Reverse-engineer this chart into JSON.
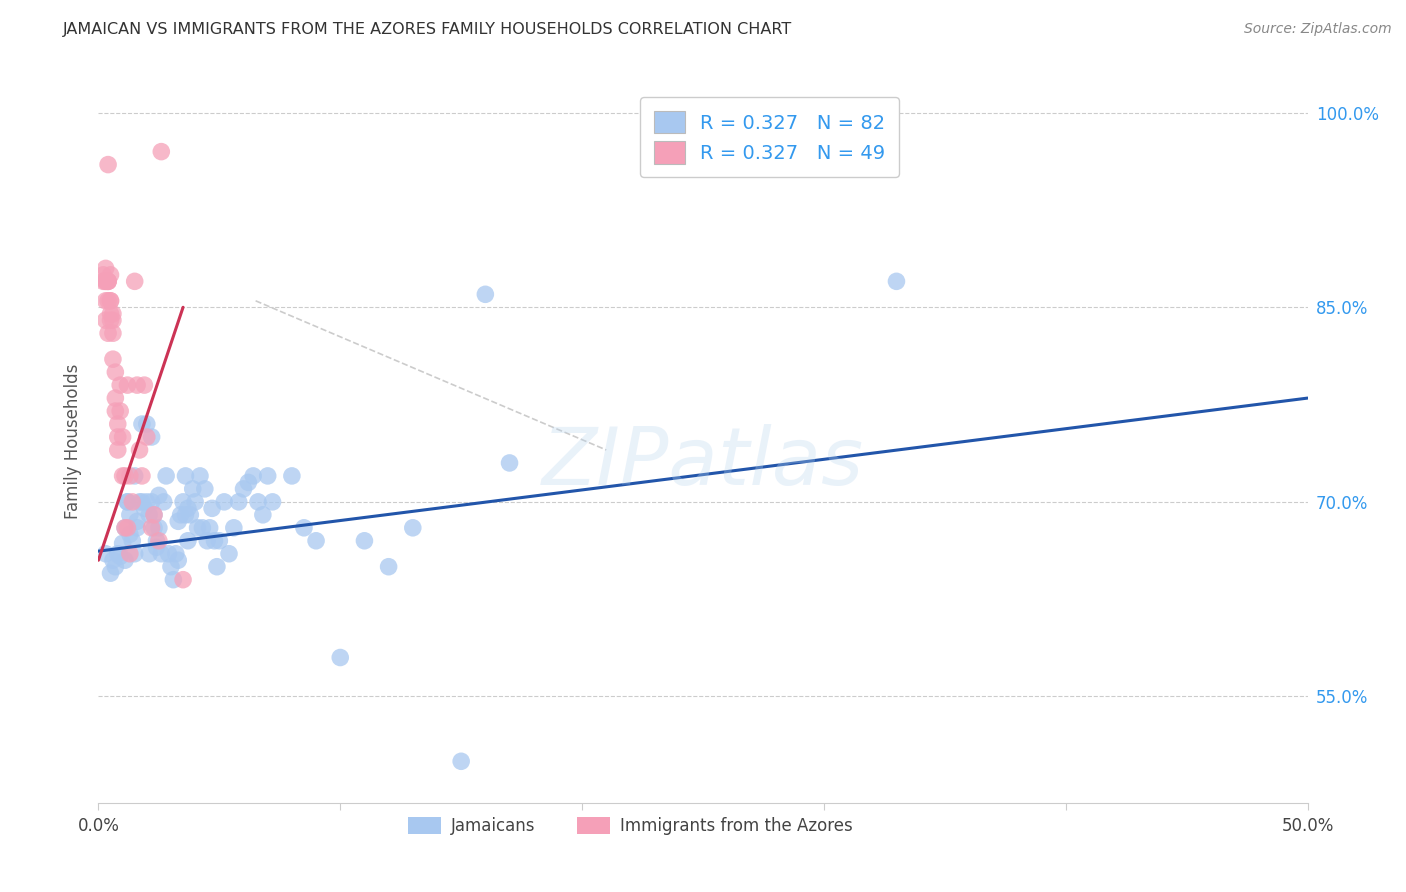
{
  "title": "JAMAICAN VS IMMIGRANTS FROM THE AZORES FAMILY HOUSEHOLDS CORRELATION CHART",
  "source": "Source: ZipAtlas.com",
  "ylabel": "Family Households",
  "watermark": "ZIPatlas",
  "legend_label_blue": "Jamaicans",
  "legend_label_pink": "Immigrants from the Azores",
  "xmin": 0.0,
  "xmax": 0.5,
  "ymin": 0.468,
  "ymax": 1.025,
  "yticks": [
    0.55,
    0.7,
    0.85,
    1.0
  ],
  "ytick_labels": [
    "55.0%",
    "70.0%",
    "85.0%",
    "100.0%"
  ],
  "xticks": [
    0.0,
    0.1,
    0.2,
    0.3,
    0.4,
    0.5
  ],
  "xtick_labels": [
    "0.0%",
    "",
    "",
    "",
    "",
    "50.0%"
  ],
  "blue_color": "#a8c8f0",
  "pink_color": "#f5a0b8",
  "blue_line_color": "#2255aa",
  "pink_line_color": "#cc3355",
  "diag_line_color": "#cccccc",
  "title_color": "#333333",
  "source_color": "#888888",
  "right_tick_color": "#3399ee",
  "blue_scatter": [
    [
      0.003,
      0.66
    ],
    [
      0.005,
      0.645
    ],
    [
      0.006,
      0.655
    ],
    [
      0.007,
      0.65
    ],
    [
      0.008,
      0.66
    ],
    [
      0.009,
      0.658
    ],
    [
      0.01,
      0.668
    ],
    [
      0.011,
      0.68
    ],
    [
      0.011,
      0.655
    ],
    [
      0.012,
      0.7
    ],
    [
      0.012,
      0.7
    ],
    [
      0.013,
      0.675
    ],
    [
      0.013,
      0.69
    ],
    [
      0.014,
      0.67
    ],
    [
      0.015,
      0.72
    ],
    [
      0.015,
      0.66
    ],
    [
      0.016,
      0.685
    ],
    [
      0.016,
      0.68
    ],
    [
      0.017,
      0.7
    ],
    [
      0.018,
      0.76
    ],
    [
      0.018,
      0.7
    ],
    [
      0.019,
      0.695
    ],
    [
      0.02,
      0.76
    ],
    [
      0.02,
      0.7
    ],
    [
      0.021,
      0.69
    ],
    [
      0.021,
      0.66
    ],
    [
      0.022,
      0.75
    ],
    [
      0.022,
      0.7
    ],
    [
      0.023,
      0.69
    ],
    [
      0.023,
      0.68
    ],
    [
      0.024,
      0.665
    ],
    [
      0.024,
      0.67
    ],
    [
      0.025,
      0.705
    ],
    [
      0.025,
      0.68
    ],
    [
      0.026,
      0.66
    ],
    [
      0.027,
      0.7
    ],
    [
      0.028,
      0.72
    ],
    [
      0.029,
      0.66
    ],
    [
      0.03,
      0.65
    ],
    [
      0.031,
      0.64
    ],
    [
      0.032,
      0.66
    ],
    [
      0.033,
      0.685
    ],
    [
      0.033,
      0.655
    ],
    [
      0.034,
      0.69
    ],
    [
      0.035,
      0.7
    ],
    [
      0.036,
      0.72
    ],
    [
      0.036,
      0.69
    ],
    [
      0.037,
      0.695
    ],
    [
      0.037,
      0.67
    ],
    [
      0.038,
      0.69
    ],
    [
      0.039,
      0.71
    ],
    [
      0.04,
      0.7
    ],
    [
      0.041,
      0.68
    ],
    [
      0.042,
      0.72
    ],
    [
      0.043,
      0.68
    ],
    [
      0.044,
      0.71
    ],
    [
      0.045,
      0.67
    ],
    [
      0.046,
      0.68
    ],
    [
      0.047,
      0.695
    ],
    [
      0.048,
      0.67
    ],
    [
      0.049,
      0.65
    ],
    [
      0.05,
      0.67
    ],
    [
      0.052,
      0.7
    ],
    [
      0.054,
      0.66
    ],
    [
      0.056,
      0.68
    ],
    [
      0.058,
      0.7
    ],
    [
      0.06,
      0.71
    ],
    [
      0.062,
      0.715
    ],
    [
      0.064,
      0.72
    ],
    [
      0.066,
      0.7
    ],
    [
      0.068,
      0.69
    ],
    [
      0.07,
      0.72
    ],
    [
      0.072,
      0.7
    ],
    [
      0.08,
      0.72
    ],
    [
      0.085,
      0.68
    ],
    [
      0.09,
      0.67
    ],
    [
      0.1,
      0.58
    ],
    [
      0.11,
      0.67
    ],
    [
      0.12,
      0.65
    ],
    [
      0.13,
      0.68
    ],
    [
      0.15,
      0.5
    ],
    [
      0.16,
      0.86
    ],
    [
      0.17,
      0.73
    ],
    [
      0.33,
      0.87
    ]
  ],
  "pink_scatter": [
    [
      0.002,
      0.87
    ],
    [
      0.002,
      0.875
    ],
    [
      0.003,
      0.87
    ],
    [
      0.003,
      0.88
    ],
    [
      0.003,
      0.855
    ],
    [
      0.003,
      0.87
    ],
    [
      0.003,
      0.84
    ],
    [
      0.004,
      0.87
    ],
    [
      0.004,
      0.87
    ],
    [
      0.004,
      0.855
    ],
    [
      0.004,
      0.83
    ],
    [
      0.004,
      0.87
    ],
    [
      0.005,
      0.855
    ],
    [
      0.005,
      0.845
    ],
    [
      0.005,
      0.84
    ],
    [
      0.005,
      0.875
    ],
    [
      0.005,
      0.855
    ],
    [
      0.006,
      0.84
    ],
    [
      0.006,
      0.845
    ],
    [
      0.006,
      0.83
    ],
    [
      0.006,
      0.81
    ],
    [
      0.007,
      0.78
    ],
    [
      0.007,
      0.8
    ],
    [
      0.007,
      0.77
    ],
    [
      0.008,
      0.76
    ],
    [
      0.008,
      0.75
    ],
    [
      0.008,
      0.74
    ],
    [
      0.009,
      0.79
    ],
    [
      0.009,
      0.77
    ],
    [
      0.01,
      0.75
    ],
    [
      0.01,
      0.72
    ],
    [
      0.011,
      0.72
    ],
    [
      0.011,
      0.68
    ],
    [
      0.012,
      0.79
    ],
    [
      0.012,
      0.68
    ],
    [
      0.013,
      0.72
    ],
    [
      0.013,
      0.66
    ],
    [
      0.014,
      0.7
    ],
    [
      0.015,
      0.87
    ],
    [
      0.016,
      0.79
    ],
    [
      0.017,
      0.74
    ],
    [
      0.018,
      0.72
    ],
    [
      0.019,
      0.79
    ],
    [
      0.02,
      0.75
    ],
    [
      0.022,
      0.68
    ],
    [
      0.023,
      0.69
    ],
    [
      0.025,
      0.67
    ],
    [
      0.026,
      0.97
    ],
    [
      0.035,
      0.64
    ],
    [
      0.004,
      0.96
    ]
  ],
  "blue_trendline": [
    [
      0.0,
      0.662
    ],
    [
      0.5,
      0.78
    ]
  ],
  "pink_trendline": [
    [
      0.0,
      0.655
    ],
    [
      0.035,
      0.85
    ]
  ],
  "diag_line": [
    [
      0.065,
      0.855
    ],
    [
      0.21,
      0.74
    ]
  ]
}
